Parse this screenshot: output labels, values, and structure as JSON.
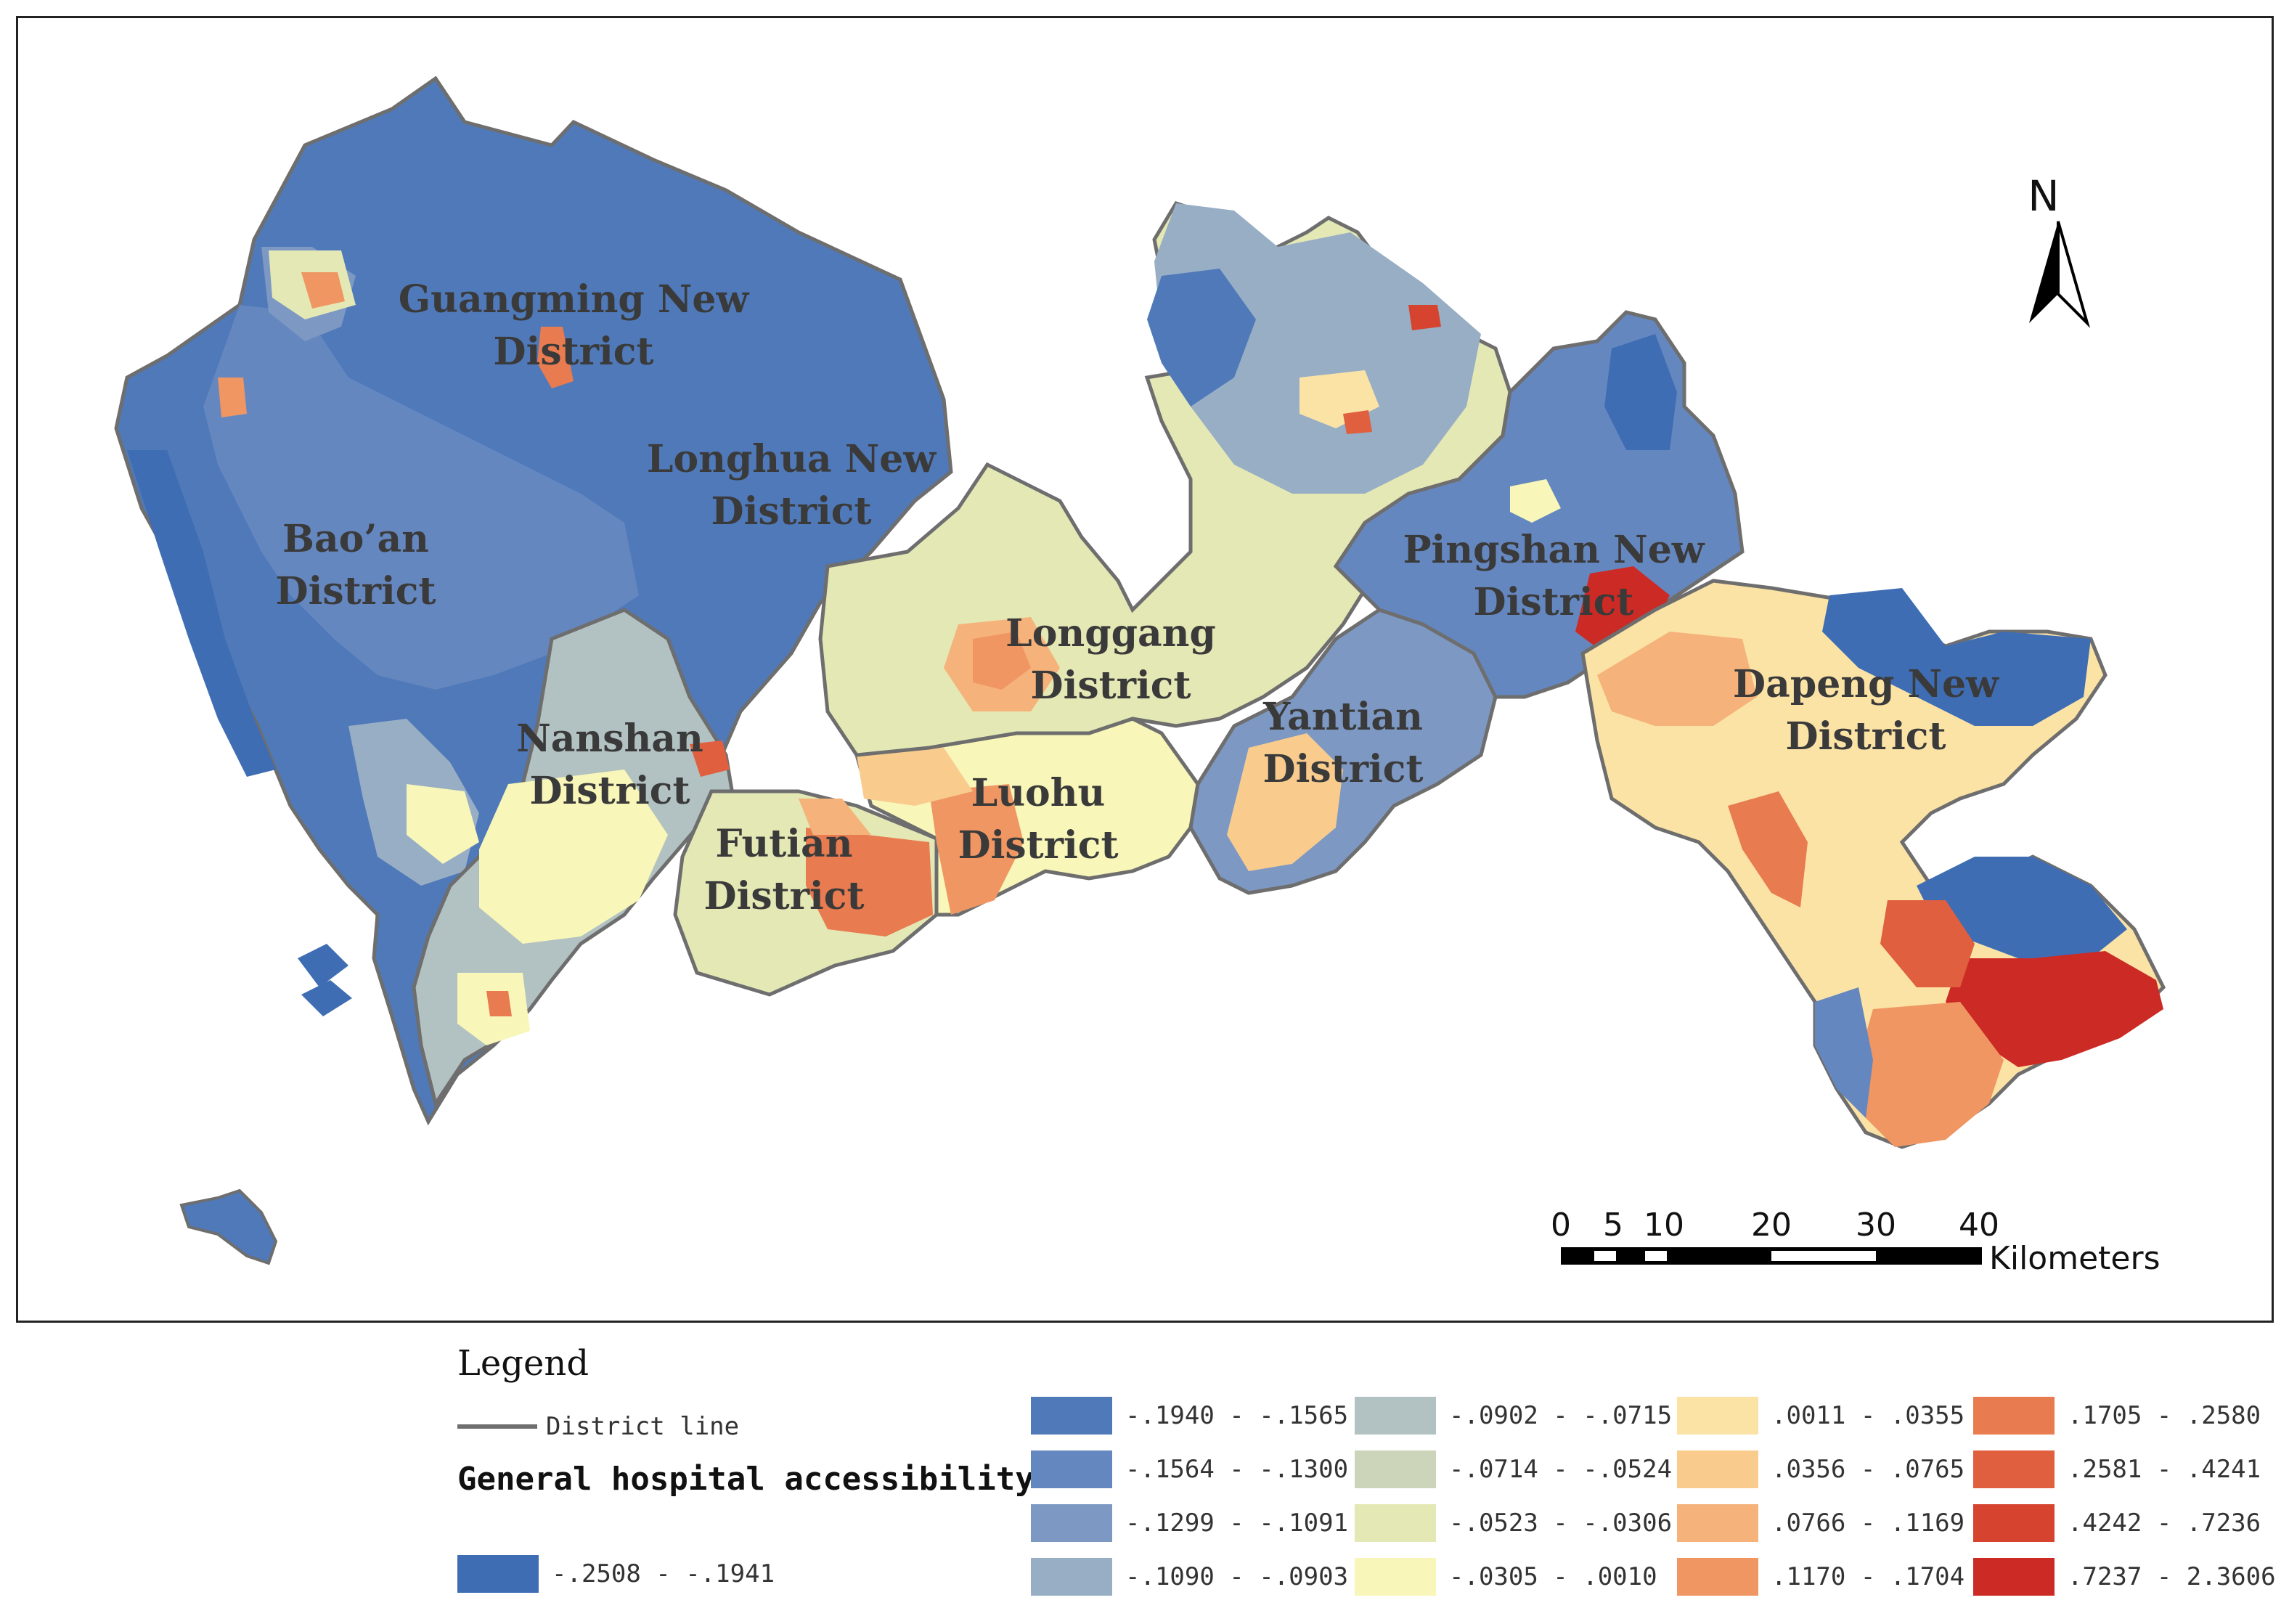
{
  "map": {
    "north_label": "N",
    "districts": [
      {
        "key": "guangming",
        "lines": [
          "Guangming New",
          "District"
        ]
      },
      {
        "key": "longhua",
        "lines": [
          "Longhua New",
          "District"
        ]
      },
      {
        "key": "baoan",
        "lines": [
          "Bao’an",
          "District"
        ]
      },
      {
        "key": "nanshan",
        "lines": [
          "Nanshan",
          "District"
        ]
      },
      {
        "key": "futian",
        "lines": [
          "Futian",
          "District"
        ]
      },
      {
        "key": "luohu",
        "lines": [
          "Luohu",
          "District"
        ]
      },
      {
        "key": "longgang",
        "lines": [
          "Longgang",
          "District"
        ]
      },
      {
        "key": "yantian",
        "lines": [
          "Yantian",
          "District"
        ]
      },
      {
        "key": "pingshan",
        "lines": [
          "Pingshan New",
          "District"
        ]
      },
      {
        "key": "dapeng",
        "lines": [
          "Dapeng New",
          "District"
        ]
      }
    ],
    "scale_bar": {
      "ticks": [
        "0",
        "5",
        "10",
        "20",
        "30",
        "40"
      ],
      "unit": "Kilometers"
    }
  },
  "legend": {
    "title": "Legend",
    "district_line_label": "District line",
    "district_line_color": "#6e6e6e",
    "variable_title": "General hospital accessibility",
    "classes": [
      {
        "range": "-.2508 - -.1941",
        "color": "#3f6db3"
      },
      {
        "range": "-.1940 - -.1565",
        "color": "#4f79b8"
      },
      {
        "range": "-.1564 - -.1300",
        "color": "#6587bf"
      },
      {
        "range": "-.1299 - -.1091",
        "color": "#7c98c3"
      },
      {
        "range": "-.1090 - -.0903",
        "color": "#98aec5"
      },
      {
        "range": "-.0902 - -.0715",
        "color": "#b2c1c1"
      },
      {
        "range": "-.0714 - -.0524",
        "color": "#ccd5ba"
      },
      {
        "range": "-.0523 - -.0306",
        "color": "#e4e8b4"
      },
      {
        "range": "-.0305 - .0010",
        "color": "#f8f6b8"
      },
      {
        "range": ".0011 - .0355",
        "color": "#fbe3a6"
      },
      {
        "range": ".0356 - .0765",
        "color": "#f9cc8e"
      },
      {
        "range": ".0766 - .1169",
        "color": "#f5b27a"
      },
      {
        "range": ".1170 - .1704",
        "color": "#ef9663"
      },
      {
        "range": ".1705 - .2580",
        "color": "#e87b50"
      },
      {
        "range": ".2581 - .4241",
        "color": "#df5f3f"
      },
      {
        "range": ".4242 - .7236",
        "color": "#d6432f"
      },
      {
        "range": ".7237 - 2.3606",
        "color": "#cc2a25"
      }
    ]
  }
}
